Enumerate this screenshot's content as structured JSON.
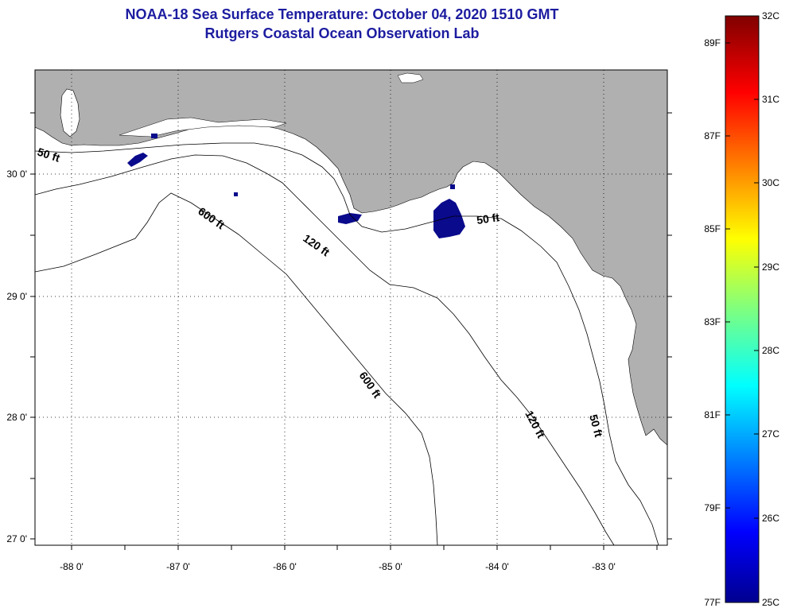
{
  "title": {
    "line1": "NOAA-18 Sea Surface Temperature:  October 04, 2020 1510 GMT",
    "line2": "Rutgers Coastal Ocean Observation Lab"
  },
  "map": {
    "lat_labels": [
      "30 0'",
      "29 0'",
      "28 0'",
      "27 0'"
    ],
    "lon_labels": [
      "-88 0'",
      "-87 0'",
      "-86 0'",
      "-85 0'",
      "-84 0'",
      "-83 0'"
    ],
    "depth_labels": [
      "50 ft",
      "600 ft",
      "120 ft",
      "50 ft",
      "600 ft",
      "120 ft",
      "50 ft"
    ],
    "colors": {
      "land": "#b0b0b0",
      "water": "#ffffff",
      "cold_patch": "#0a0a8c"
    }
  },
  "colorbar": {
    "celsius": [
      "32C",
      "31C",
      "30C",
      "29C",
      "28C",
      "27C",
      "26C",
      "25C"
    ],
    "fahrenheit": [
      "89F",
      "87F",
      "85F",
      "83F",
      "81F",
      "79F",
      "77F"
    ]
  }
}
